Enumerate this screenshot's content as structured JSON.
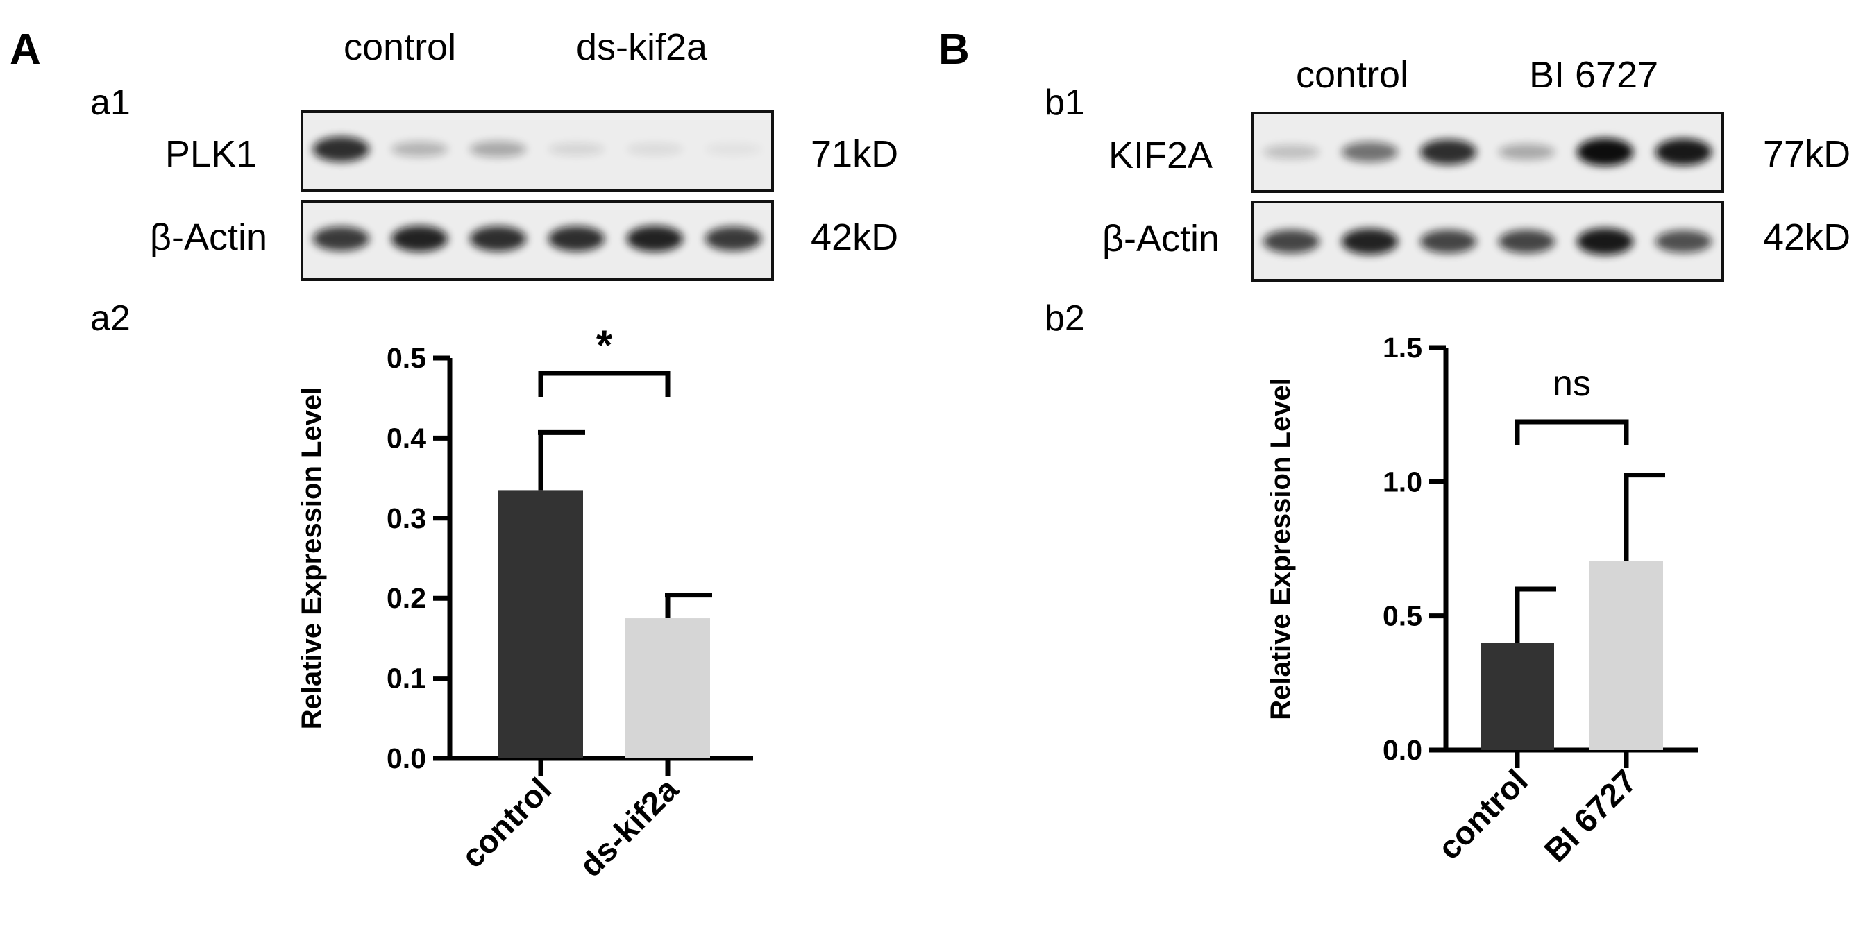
{
  "panel_a": {
    "letter": "A",
    "blot": {
      "sublabel": "a1",
      "groups": [
        "control",
        "ds-kif2a"
      ],
      "rows": [
        {
          "label": "PLK1",
          "size": "71kD",
          "band_intensity": [
            0.85,
            0.25,
            0.3,
            0.1,
            0.08,
            0.05
          ]
        },
        {
          "label": "β-Actin",
          "size": "42kD",
          "band_intensity": [
            0.8,
            0.9,
            0.85,
            0.85,
            0.9,
            0.8
          ]
        }
      ]
    },
    "chart_sublabel": "a2"
  },
  "panel_b": {
    "letter": "B",
    "blot": {
      "sublabel": "b1",
      "groups": [
        "control",
        "BI 6727"
      ],
      "rows": [
        {
          "label": "KIF2A",
          "size": "77kD",
          "band_intensity": [
            0.2,
            0.55,
            0.85,
            0.3,
            1.0,
            0.95
          ]
        },
        {
          "label": "β-Actin",
          "size": "42kD",
          "band_intensity": [
            0.75,
            0.9,
            0.75,
            0.75,
            0.95,
            0.7
          ]
        }
      ]
    },
    "chart_sublabel": "b2"
  },
  "chart_data": [
    {
      "type": "bar",
      "categories": [
        "control",
        "ds-kif2a"
      ],
      "values": [
        0.335,
        0.175
      ],
      "error_upper": [
        0.407,
        0.204
      ],
      "ylabel": "Relative Expression Level",
      "ylim": [
        0,
        0.5
      ],
      "yticks": [
        "0.0",
        "0.1",
        "0.2",
        "0.3",
        "0.4",
        "0.5"
      ],
      "significance": "*",
      "colors": [
        "#333333",
        "#d6d6d6"
      ]
    },
    {
      "type": "bar",
      "categories": [
        "control",
        "BI 6727"
      ],
      "values": [
        0.4,
        0.705
      ],
      "error_upper": [
        0.6,
        1.025
      ],
      "ylabel": "Relative Expression Level",
      "ylim": [
        0,
        1.5
      ],
      "yticks": [
        "0.0",
        "0.5",
        "1.0",
        "1.5"
      ],
      "significance": "ns",
      "colors": [
        "#333333",
        "#d6d6d6"
      ]
    }
  ]
}
